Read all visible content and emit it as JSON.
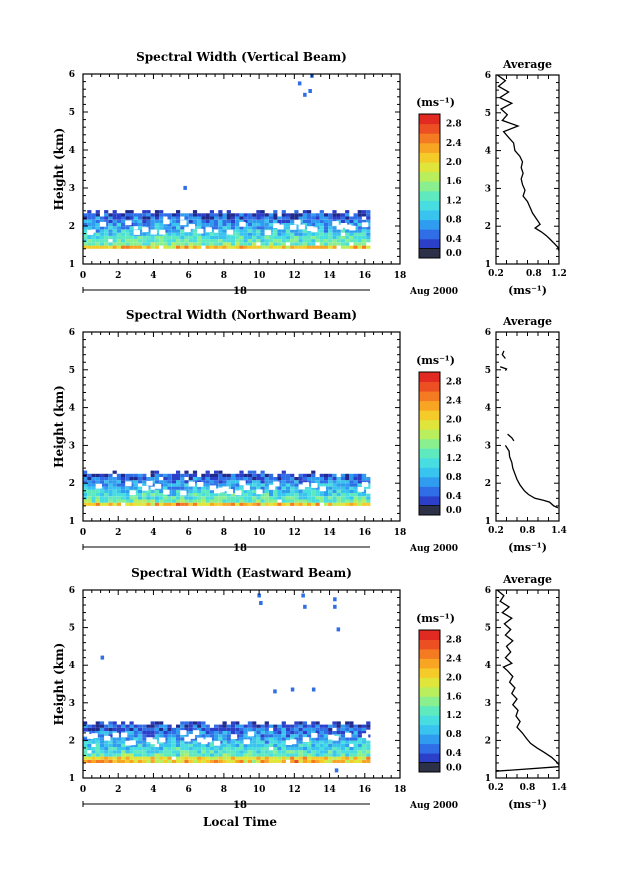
{
  "panels": [
    {
      "title": "Spectral Width (Vertical Beam)",
      "date_day": "18",
      "date_label": "Aug 2000",
      "show_xlabel": false
    },
    {
      "title": "Spectral Width (Northward Beam)",
      "date_day": "18",
      "date_label": "Aug 2000",
      "show_xlabel": false
    },
    {
      "title": "Spectral Width (Eastward Beam)",
      "date_day": "18",
      "date_label": "Aug 2000",
      "show_xlabel": true
    }
  ],
  "common": {
    "ylabel": "Height (km)",
    "xlabel": "Local Time",
    "colorbar_unit": "(ms⁻¹)",
    "avg_title": "Average",
    "avg_xunit": "(ms⁻¹)"
  },
  "chart_data": [
    {
      "type": "heatmap",
      "title": "Spectral Width (Vertical Beam)",
      "xlabel": "",
      "ylabel": "Height (km)",
      "xlim": [
        0,
        18
      ],
      "ylim": [
        1,
        6
      ],
      "xticks": [
        0,
        2,
        4,
        6,
        8,
        10,
        12,
        14,
        16,
        18
      ],
      "yticks": [
        1,
        2,
        3,
        4,
        5,
        6
      ],
      "data_extent_hours": [
        0,
        16.3
      ],
      "data_top_km": 2.4,
      "colorbar_ticks": [
        0.0,
        0.4,
        0.8,
        1.2,
        1.6,
        2.0,
        2.4,
        2.8
      ],
      "colorbar_range": [
        0.0,
        3.0
      ],
      "sparse_points": [
        {
          "x": 5.7,
          "y": 2.95,
          "v": 0.5
        },
        {
          "x": 12.2,
          "y": 5.7,
          "v": 0.5
        },
        {
          "x": 12.5,
          "y": 5.4,
          "v": 0.4
        },
        {
          "x": 12.9,
          "y": 5.9,
          "v": 0.5
        },
        {
          "x": 12.8,
          "y": 5.5,
          "v": 0.4
        }
      ],
      "average": {
        "title": "Average",
        "xlim": [
          0.2,
          1.2
        ],
        "xticks": [
          0.2,
          0.8,
          1.2
        ],
        "xunit": "(ms⁻¹)",
        "profile": [
          [
            0.22,
            6.0
          ],
          [
            0.35,
            5.85
          ],
          [
            0.24,
            5.7
          ],
          [
            0.4,
            5.55
          ],
          [
            0.26,
            5.4
          ],
          [
            0.45,
            5.25
          ],
          [
            0.28,
            5.1
          ],
          [
            0.38,
            4.95
          ],
          [
            0.3,
            4.8
          ],
          [
            0.55,
            4.65
          ],
          [
            0.32,
            4.5
          ],
          [
            0.4,
            4.35
          ],
          [
            0.48,
            4.2
          ],
          [
            0.5,
            4.0
          ],
          [
            0.58,
            3.85
          ],
          [
            0.62,
            3.7
          ],
          [
            0.6,
            3.55
          ],
          [
            0.63,
            3.4
          ],
          [
            0.6,
            3.25
          ],
          [
            0.62,
            3.1
          ],
          [
            0.66,
            2.95
          ],
          [
            0.63,
            2.8
          ],
          [
            0.7,
            2.65
          ],
          [
            0.74,
            2.5
          ],
          [
            0.78,
            2.35
          ],
          [
            0.84,
            2.2
          ],
          [
            0.9,
            2.05
          ],
          [
            0.82,
            1.95
          ],
          [
            0.92,
            1.85
          ],
          [
            1.0,
            1.75
          ],
          [
            1.06,
            1.65
          ],
          [
            1.12,
            1.55
          ],
          [
            1.18,
            1.45
          ],
          [
            1.2,
            1.35
          ]
        ]
      }
    },
    {
      "type": "heatmap",
      "title": "Spectral Width (Northward Beam)",
      "xlabel": "",
      "ylabel": "Height (km)",
      "xlim": [
        0,
        18
      ],
      "ylim": [
        1,
        6
      ],
      "xticks": [
        0,
        2,
        4,
        6,
        8,
        10,
        12,
        14,
        16,
        18
      ],
      "yticks": [
        1,
        2,
        3,
        4,
        5,
        6
      ],
      "data_extent_hours": [
        0,
        16.3
      ],
      "data_top_km": 2.3,
      "colorbar_ticks": [
        0.0,
        0.4,
        0.8,
        1.2,
        1.6,
        2.0,
        2.4,
        2.8
      ],
      "colorbar_range": [
        0.0,
        3.0
      ],
      "sparse_points": [],
      "average": {
        "title": "Average",
        "xlim": [
          0.2,
          1.4
        ],
        "xticks": [
          0.2,
          0.8,
          1.4
        ],
        "xunit": "(ms⁻¹)",
        "profile_segments": [
          [
            [
              0.35,
              5.5
            ],
            [
              0.32,
              5.4
            ],
            [
              0.38,
              5.3
            ]
          ],
          [
            [
              0.28,
              5.08
            ],
            [
              0.4,
              5.02
            ],
            [
              0.38,
              4.98
            ]
          ],
          [
            [
              0.42,
              3.3
            ],
            [
              0.5,
              3.2
            ],
            [
              0.54,
              3.12
            ]
          ],
          [
            [
              0.38,
              3.0
            ],
            [
              0.45,
              2.85
            ],
            [
              0.46,
              2.7
            ],
            [
              0.5,
              2.55
            ],
            [
              0.52,
              2.4
            ],
            [
              0.56,
              2.25
            ],
            [
              0.6,
              2.1
            ],
            [
              0.66,
              1.95
            ],
            [
              0.74,
              1.8
            ],
            [
              0.82,
              1.7
            ],
            [
              0.94,
              1.6
            ],
            [
              1.1,
              1.55
            ],
            [
              1.22,
              1.5
            ],
            [
              1.3,
              1.4
            ],
            [
              1.38,
              1.35
            ]
          ]
        ]
      }
    },
    {
      "type": "heatmap",
      "title": "Spectral Width (Eastward Beam)",
      "xlabel": "Local Time",
      "ylabel": "Height (km)",
      "xlim": [
        0,
        18
      ],
      "ylim": [
        1,
        6
      ],
      "xticks": [
        0,
        2,
        4,
        6,
        8,
        10,
        12,
        14,
        16,
        18
      ],
      "yticks": [
        1,
        2,
        3,
        4,
        5,
        6
      ],
      "data_extent_hours": [
        0,
        16.3
      ],
      "data_top_km": 2.5,
      "colorbar_ticks": [
        0.0,
        0.4,
        0.8,
        1.2,
        1.6,
        2.0,
        2.4,
        2.8
      ],
      "colorbar_range": [
        0.0,
        3.0
      ],
      "sparse_points": [
        {
          "x": 1.0,
          "y": 4.15,
          "v": 0.4
        },
        {
          "x": 9.9,
          "y": 5.8,
          "v": 0.5
        },
        {
          "x": 10.0,
          "y": 5.6,
          "v": 0.4
        },
        {
          "x": 12.4,
          "y": 5.8,
          "v": 0.4
        },
        {
          "x": 12.5,
          "y": 5.5,
          "v": 0.4
        },
        {
          "x": 14.2,
          "y": 5.7,
          "v": 0.5
        },
        {
          "x": 14.2,
          "y": 5.5,
          "v": 0.4
        },
        {
          "x": 14.4,
          "y": 4.9,
          "v": 0.5
        },
        {
          "x": 10.8,
          "y": 3.25,
          "v": 0.4
        },
        {
          "x": 11.8,
          "y": 3.3,
          "v": 0.4
        },
        {
          "x": 13.0,
          "y": 3.3,
          "v": 0.5
        },
        {
          "x": 14.3,
          "y": 1.15,
          "v": 0.4
        }
      ],
      "average": {
        "title": "Average",
        "xlim": [
          0.2,
          1.4
        ],
        "xticks": [
          0.2,
          0.8,
          1.4
        ],
        "xunit": "(ms⁻¹)",
        "profile": [
          [
            0.22,
            6.0
          ],
          [
            0.35,
            5.85
          ],
          [
            0.28,
            5.7
          ],
          [
            0.45,
            5.55
          ],
          [
            0.32,
            5.4
          ],
          [
            0.5,
            5.25
          ],
          [
            0.36,
            5.1
          ],
          [
            0.48,
            4.95
          ],
          [
            0.38,
            4.8
          ],
          [
            0.52,
            4.65
          ],
          [
            0.4,
            4.5
          ],
          [
            0.48,
            4.35
          ],
          [
            0.38,
            4.2
          ],
          [
            0.5,
            4.05
          ],
          [
            0.34,
            3.95
          ],
          [
            0.42,
            3.85
          ],
          [
            0.52,
            3.7
          ],
          [
            0.46,
            3.55
          ],
          [
            0.56,
            3.4
          ],
          [
            0.5,
            3.25
          ],
          [
            0.6,
            3.1
          ],
          [
            0.52,
            2.95
          ],
          [
            0.62,
            2.8
          ],
          [
            0.58,
            2.65
          ],
          [
            0.66,
            2.5
          ],
          [
            0.6,
            2.35
          ],
          [
            0.7,
            2.2
          ],
          [
            0.78,
            2.05
          ],
          [
            0.86,
            1.92
          ],
          [
            0.98,
            1.8
          ],
          [
            1.12,
            1.68
          ],
          [
            1.26,
            1.55
          ],
          [
            1.36,
            1.42
          ],
          [
            1.4,
            1.35
          ]
        ],
        "tail": [
          [
            1.4,
            1.3
          ],
          [
            0.2,
            1.18
          ]
        ]
      }
    }
  ]
}
